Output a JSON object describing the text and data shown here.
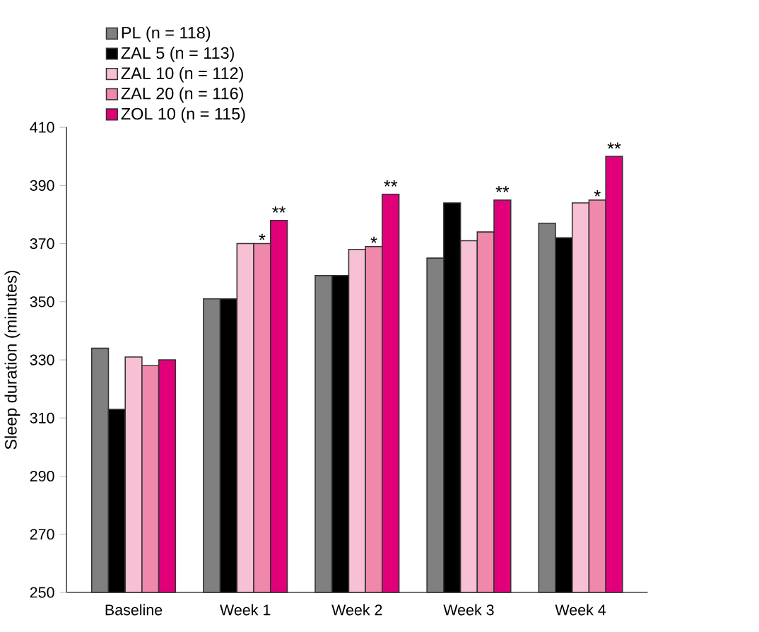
{
  "chart_data": {
    "type": "bar",
    "ylabel": "Sleep duration (minutes)",
    "categories": [
      "Baseline",
      "Week 1",
      "Week 2",
      "Week 3",
      "Week 4"
    ],
    "series": [
      {
        "name": "PL (n = 118)",
        "color": "#808080",
        "values": [
          334,
          351,
          359,
          365,
          377
        ]
      },
      {
        "name": "ZAL 5 (n = 113)",
        "color": "#000000",
        "values": [
          313,
          351,
          359,
          384,
          372
        ]
      },
      {
        "name": "ZAL 10 (n = 112)",
        "color": "#f8c0d4",
        "values": [
          331,
          370,
          368,
          371,
          384
        ]
      },
      {
        "name": "ZAL 20 (n = 116)",
        "color": "#f088ac",
        "values": [
          328,
          370,
          369,
          374,
          385
        ]
      },
      {
        "name": "ZOL 10 (n = 115)",
        "color": "#e2007a",
        "values": [
          330,
          378,
          387,
          385,
          400
        ]
      }
    ],
    "ylim": [
      250,
      410
    ],
    "yticks": [
      250,
      270,
      290,
      310,
      330,
      350,
      370,
      390,
      410
    ],
    "grid": false,
    "legend": "top left",
    "annotations": [
      {
        "text": "*",
        "x": "Week 1",
        "y": 370
      },
      "**",
      {
        "text": "*",
        "x": "Week 2",
        "y": 369
      },
      "**",
      "**",
      {
        "text": "*",
        "x": "Week 4",
        "y": 385
      },
      "**"
    ]
  }
}
